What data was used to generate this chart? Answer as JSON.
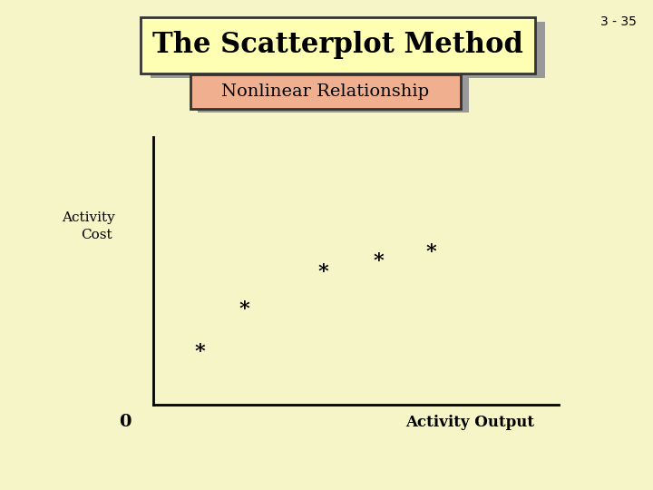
{
  "background_color": "#f5f5c8",
  "title": "The Scatterplot Method",
  "title_box_facecolor": "#ffffb3",
  "title_box_edgecolor": "#333333",
  "title_shadow_color": "#999999",
  "subtitle": "Nonlinear Relationship",
  "subtitle_box_facecolor": "#f0b090",
  "subtitle_box_edgecolor": "#333333",
  "page_number": "3 - 35",
  "ylabel_line1": "Activity",
  "ylabel_line2": "Cost",
  "xlabel": "Activity Output",
  "zero_label": "0",
  "scatter_x": [
    0.115,
    0.225,
    0.42,
    0.555,
    0.685
  ],
  "scatter_y": [
    0.195,
    0.355,
    0.495,
    0.535,
    0.57
  ],
  "axis_color": "#000000",
  "scatter_color": "#000000"
}
